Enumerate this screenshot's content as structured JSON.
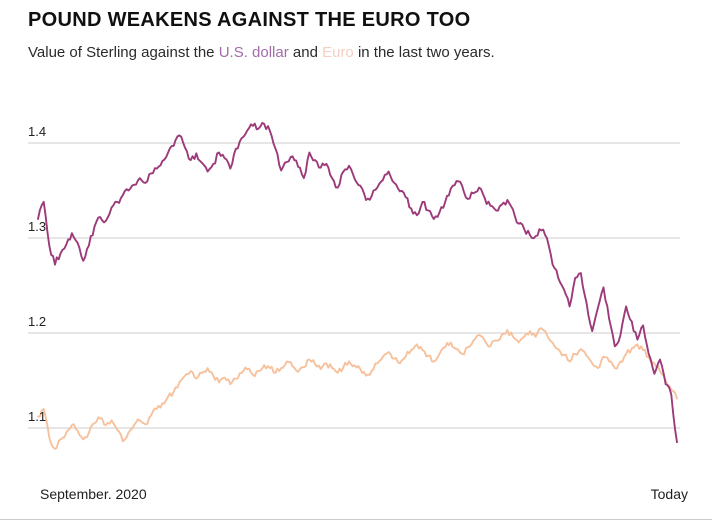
{
  "header": {
    "title": "POUND WEAKENS AGAINST THE EURO TOO",
    "subtitle": {
      "pre": "Value of Sterling against the ",
      "usd": "U.S. dollar",
      "mid": " and ",
      "euro": "Euro",
      "post": " in the last two years."
    }
  },
  "colors": {
    "usd_line": "#9c3a7a",
    "euro_line": "#f6c19c",
    "usd_text": "#a36ca8",
    "euro_text": "#f4cfc4",
    "grid": "#cccccc",
    "title_text": "#101010",
    "body_text": "#2b2b2b",
    "axis_text": "#222222",
    "divider": "#cccccc"
  },
  "chart_data": {
    "type": "line",
    "title": "POUND WEAKENS AGAINST THE EURO TOO",
    "subtitle": "Value of Sterling against the U.S. dollar and Euro in the last two years.",
    "grid": "horizontal",
    "legend_position": "inline-subtitle",
    "ylim": [
      1.05,
      1.45
    ],
    "y_ticks": [
      "1.1",
      "1.2",
      "1.3",
      "1.4"
    ],
    "x_axis": {
      "start_label": "September. 2020",
      "end_label": "Today"
    },
    "series": [
      {
        "name": "Euro",
        "color": "#f6c19c",
        "values": [
          1.112,
          1.12,
          1.09,
          1.078,
          1.088,
          1.095,
          1.103,
          1.097,
          1.088,
          1.095,
          1.105,
          1.11,
          1.103,
          1.108,
          1.098,
          1.086,
          1.095,
          1.103,
          1.108,
          1.104,
          1.113,
          1.12,
          1.126,
          1.133,
          1.138,
          1.148,
          1.155,
          1.16,
          1.152,
          1.158,
          1.163,
          1.155,
          1.148,
          1.153,
          1.146,
          1.152,
          1.158,
          1.162,
          1.156,
          1.16,
          1.166,
          1.163,
          1.158,
          1.163,
          1.17,
          1.165,
          1.159,
          1.164,
          1.172,
          1.167,
          1.162,
          1.168,
          1.163,
          1.158,
          1.164,
          1.17,
          1.166,
          1.162,
          1.155,
          1.16,
          1.168,
          1.175,
          1.18,
          1.173,
          1.168,
          1.175,
          1.182,
          1.188,
          1.182,
          1.176,
          1.17,
          1.178,
          1.185,
          1.19,
          1.183,
          1.178,
          1.185,
          1.192,
          1.198,
          1.192,
          1.186,
          1.192,
          1.198,
          1.203,
          1.196,
          1.19,
          1.196,
          1.202,
          1.196,
          1.205,
          1.198,
          1.19,
          1.183,
          1.177,
          1.17,
          1.178,
          1.183,
          1.176,
          1.168,
          1.163,
          1.175,
          1.17,
          1.163,
          1.17,
          1.178,
          1.184,
          1.188,
          1.182,
          1.175,
          1.168,
          1.16,
          1.15,
          1.14,
          1.131
        ]
      },
      {
        "name": "U.S. dollar",
        "color": "#9c3a7a",
        "values": [
          1.32,
          1.338,
          1.292,
          1.272,
          1.284,
          1.293,
          1.305,
          1.295,
          1.276,
          1.292,
          1.312,
          1.322,
          1.318,
          1.332,
          1.338,
          1.345,
          1.35,
          1.356,
          1.363,
          1.358,
          1.368,
          1.373,
          1.381,
          1.39,
          1.397,
          1.408,
          1.395,
          1.382,
          1.389,
          1.379,
          1.37,
          1.378,
          1.39,
          1.384,
          1.373,
          1.394,
          1.405,
          1.413,
          1.418,
          1.415,
          1.42,
          1.413,
          1.394,
          1.371,
          1.38,
          1.386,
          1.375,
          1.363,
          1.39,
          1.382,
          1.374,
          1.378,
          1.363,
          1.353,
          1.37,
          1.376,
          1.362,
          1.355,
          1.34,
          1.344,
          1.353,
          1.361,
          1.37,
          1.358,
          1.349,
          1.343,
          1.331,
          1.324,
          1.338,
          1.329,
          1.32,
          1.327,
          1.338,
          1.352,
          1.36,
          1.355,
          1.341,
          1.347,
          1.353,
          1.342,
          1.334,
          1.329,
          1.335,
          1.34,
          1.33,
          1.315,
          1.309,
          1.303,
          1.302,
          1.308,
          1.3,
          1.272,
          1.258,
          1.246,
          1.228,
          1.258,
          1.263,
          1.232,
          1.202,
          1.226,
          1.248,
          1.215,
          1.186,
          1.198,
          1.228,
          1.212,
          1.193,
          1.208,
          1.178,
          1.157,
          1.172,
          1.146,
          1.135,
          1.085
        ]
      }
    ]
  }
}
